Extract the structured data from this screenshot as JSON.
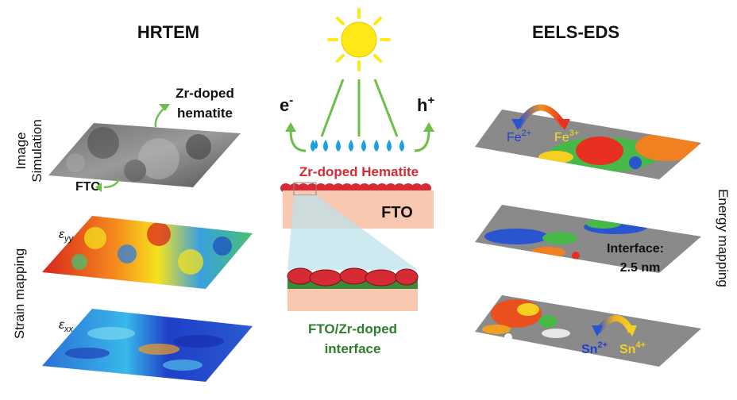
{
  "left": {
    "title": "HRTEM",
    "side_label_top_1": "Image",
    "side_label_top_2": "Simulation",
    "side_label_bottom": "Strain mapping",
    "annot_zr_1": "Zr-doped",
    "annot_zr_2": "hematite",
    "annot_fto": "FTO",
    "eps_yy": "ε",
    "eps_yy_sub": "yy",
    "eps_xx": "ε",
    "eps_xx_sub": "xx"
  },
  "center": {
    "electron": "e",
    "electron_sup": "-",
    "hole": "h",
    "hole_sup": "+",
    "hematite_label": "Zr-doped Hematite",
    "fto_label": "FTO",
    "interface_1": "FTO/Zr-doped",
    "interface_2": "interface"
  },
  "right": {
    "title": "EELS-EDS",
    "side_label": "Energy mapping",
    "fe2": "Fe",
    "fe2_sup": "2+",
    "fe3": "Fe",
    "fe3_sup": "3+",
    "interface_1": "Interface:",
    "interface_2": "2.5 nm",
    "sn2": "Sn",
    "sn2_sup": "2+",
    "sn4": "Sn",
    "sn4_sup": "4+"
  },
  "colors": {
    "sun": "#ffe817",
    "green": "#6cbf4a",
    "drop": "#1aa0e0",
    "hematite_red": "#d42b34",
    "fto": "#f9c8b0",
    "interface_green": "#3a8a3a",
    "map_gray": "#8a8a8a"
  }
}
